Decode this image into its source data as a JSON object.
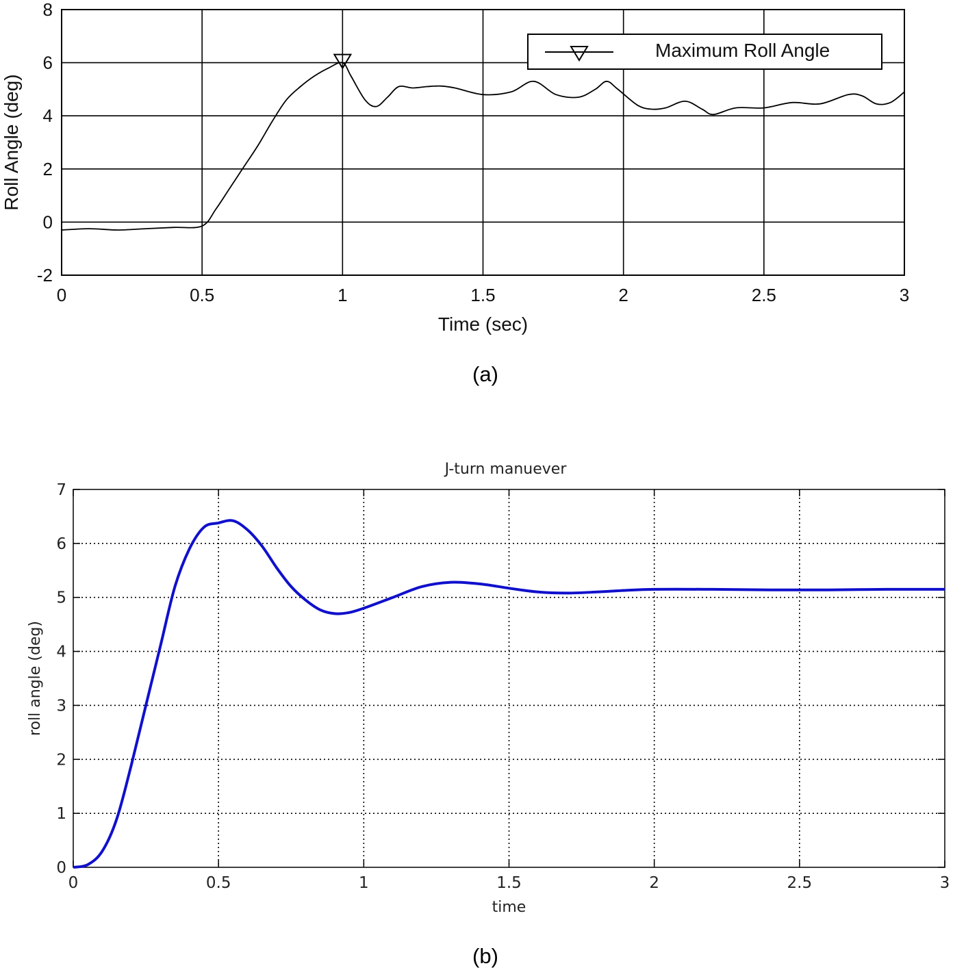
{
  "chart_data": [
    {
      "type": "line",
      "caption": "(a)",
      "title": "",
      "xlabel": "Time (sec)",
      "ylabel": "Roll Angle (deg)",
      "xlim": [
        0,
        3
      ],
      "ylim": [
        -2,
        8
      ],
      "xticks": [
        "0",
        "0.5",
        "1",
        "1.5",
        "2",
        "2.5",
        "3"
      ],
      "yticks": [
        "-2",
        "0",
        "2",
        "4",
        "6",
        "8"
      ],
      "grid": "solid",
      "legend_position": "top-right",
      "colors": {
        "line": "#000000",
        "grid": "#000000"
      },
      "series": [
        {
          "name": "",
          "x": [
            0,
            0.1,
            0.2,
            0.3,
            0.4,
            0.5,
            0.55,
            0.6,
            0.65,
            0.7,
            0.75,
            0.8,
            0.85,
            0.9,
            0.95,
            1.0,
            1.03,
            1.08,
            1.12,
            1.16,
            1.2,
            1.25,
            1.3,
            1.35,
            1.4,
            1.5,
            1.6,
            1.68,
            1.76,
            1.84,
            1.9,
            1.94,
            1.98,
            2.05,
            2.1,
            2.15,
            2.22,
            2.28,
            2.32,
            2.4,
            2.5,
            2.6,
            2.7,
            2.8,
            2.85,
            2.9,
            2.95,
            3.0
          ],
          "y": [
            -0.3,
            -0.25,
            -0.3,
            -0.25,
            -0.2,
            -0.15,
            0.5,
            1.3,
            2.1,
            2.9,
            3.8,
            4.6,
            5.1,
            5.5,
            5.8,
            6.0,
            5.5,
            4.6,
            4.35,
            4.7,
            5.1,
            5.05,
            5.1,
            5.12,
            5.05,
            4.8,
            4.9,
            5.3,
            4.8,
            4.7,
            5.0,
            5.3,
            5.0,
            4.4,
            4.25,
            4.3,
            4.55,
            4.25,
            4.05,
            4.3,
            4.3,
            4.5,
            4.45,
            4.8,
            4.75,
            4.45,
            4.5,
            4.9
          ]
        },
        {
          "name": "Maximum Roll Angle",
          "marker": "down-triangle",
          "x": [
            1.0
          ],
          "y": [
            6.05
          ]
        }
      ]
    },
    {
      "type": "line",
      "caption": "(b)",
      "title": "J-turn manuever",
      "xlabel": "time",
      "ylabel": "roll angle (deg)",
      "xlim": [
        0,
        3
      ],
      "ylim": [
        0,
        7
      ],
      "xticks": [
        "0",
        "0.5",
        "1",
        "1.5",
        "2",
        "2.5",
        "3"
      ],
      "yticks": [
        "0",
        "1",
        "2",
        "3",
        "4",
        "5",
        "6",
        "7"
      ],
      "grid": "dotted",
      "legend_position": "none",
      "colors": {
        "line": "#1010cc",
        "grid": "#000000"
      },
      "series": [
        {
          "name": "",
          "x": [
            0,
            0.05,
            0.1,
            0.15,
            0.2,
            0.25,
            0.3,
            0.35,
            0.4,
            0.45,
            0.5,
            0.55,
            0.6,
            0.65,
            0.7,
            0.75,
            0.8,
            0.85,
            0.9,
            0.95,
            1.0,
            1.1,
            1.2,
            1.3,
            1.4,
            1.5,
            1.6,
            1.7,
            1.8,
            1.9,
            2.0,
            2.2,
            2.4,
            2.6,
            2.8,
            3.0
          ],
          "y": [
            0.0,
            0.05,
            0.3,
            0.9,
            1.9,
            3.0,
            4.1,
            5.2,
            5.9,
            6.3,
            6.38,
            6.42,
            6.25,
            5.95,
            5.55,
            5.2,
            4.95,
            4.77,
            4.7,
            4.72,
            4.8,
            5.0,
            5.2,
            5.28,
            5.25,
            5.17,
            5.1,
            5.08,
            5.1,
            5.13,
            5.15,
            5.15,
            5.14,
            5.14,
            5.15,
            5.15
          ]
        }
      ]
    }
  ]
}
